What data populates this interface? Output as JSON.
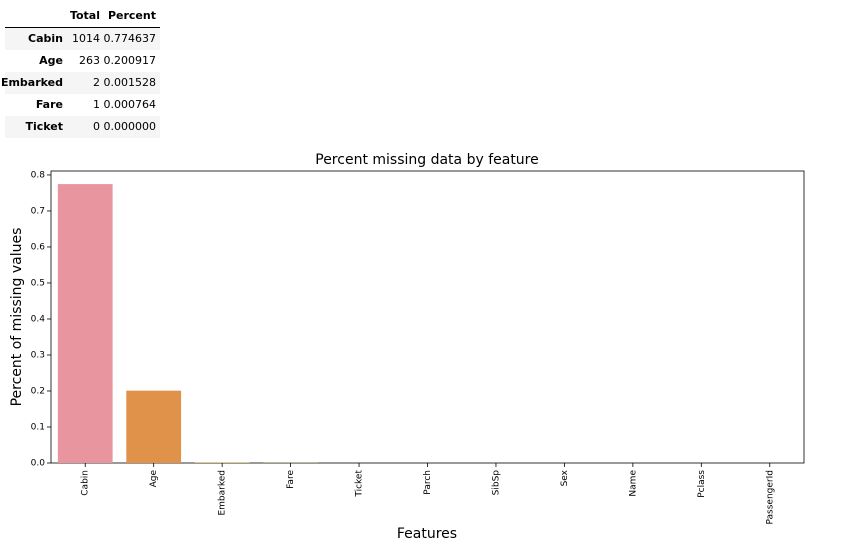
{
  "table": {
    "columns": [
      "Total",
      "Percent"
    ],
    "rows": [
      [
        "Cabin",
        1014,
        "0.774637"
      ],
      [
        "Age",
        263,
        "0.200917"
      ],
      [
        "Embarked",
        2,
        "0.001528"
      ],
      [
        "Fare",
        1,
        "0.000764"
      ],
      [
        "Ticket",
        0,
        "0.000000"
      ]
    ]
  },
  "chart_data": {
    "type": "bar",
    "title": "Percent missing data by feature",
    "x_label": "Features",
    "y_label": "Percent of missing values",
    "categories": [
      "Cabin",
      "Age",
      "Embarked",
      "Fare",
      "Ticket",
      "Parch",
      "SibSp",
      "Sex",
      "Name",
      "Pclass",
      "PassengerId"
    ],
    "values": [
      0.774637,
      0.200917,
      0.001528,
      0.000764,
      0,
      0,
      0,
      0,
      0,
      0,
      0
    ],
    "colors": [
      "#e8959f",
      "#e0924a",
      "#b9a23e",
      "#94ac3e",
      "#4fae7c",
      "#50aaa4",
      "#52a6c0",
      "#7f9ce6",
      "#c084e6",
      "#e27ccb",
      "#e8859f"
    ],
    "ylim": [
      0,
      0.811
    ],
    "yticks": [
      {
        "value": 0,
        "label": "0.0"
      },
      0.1,
      0.2,
      0.3,
      0.4,
      0.5,
      0.6,
      0.7,
      0.8
    ]
  }
}
